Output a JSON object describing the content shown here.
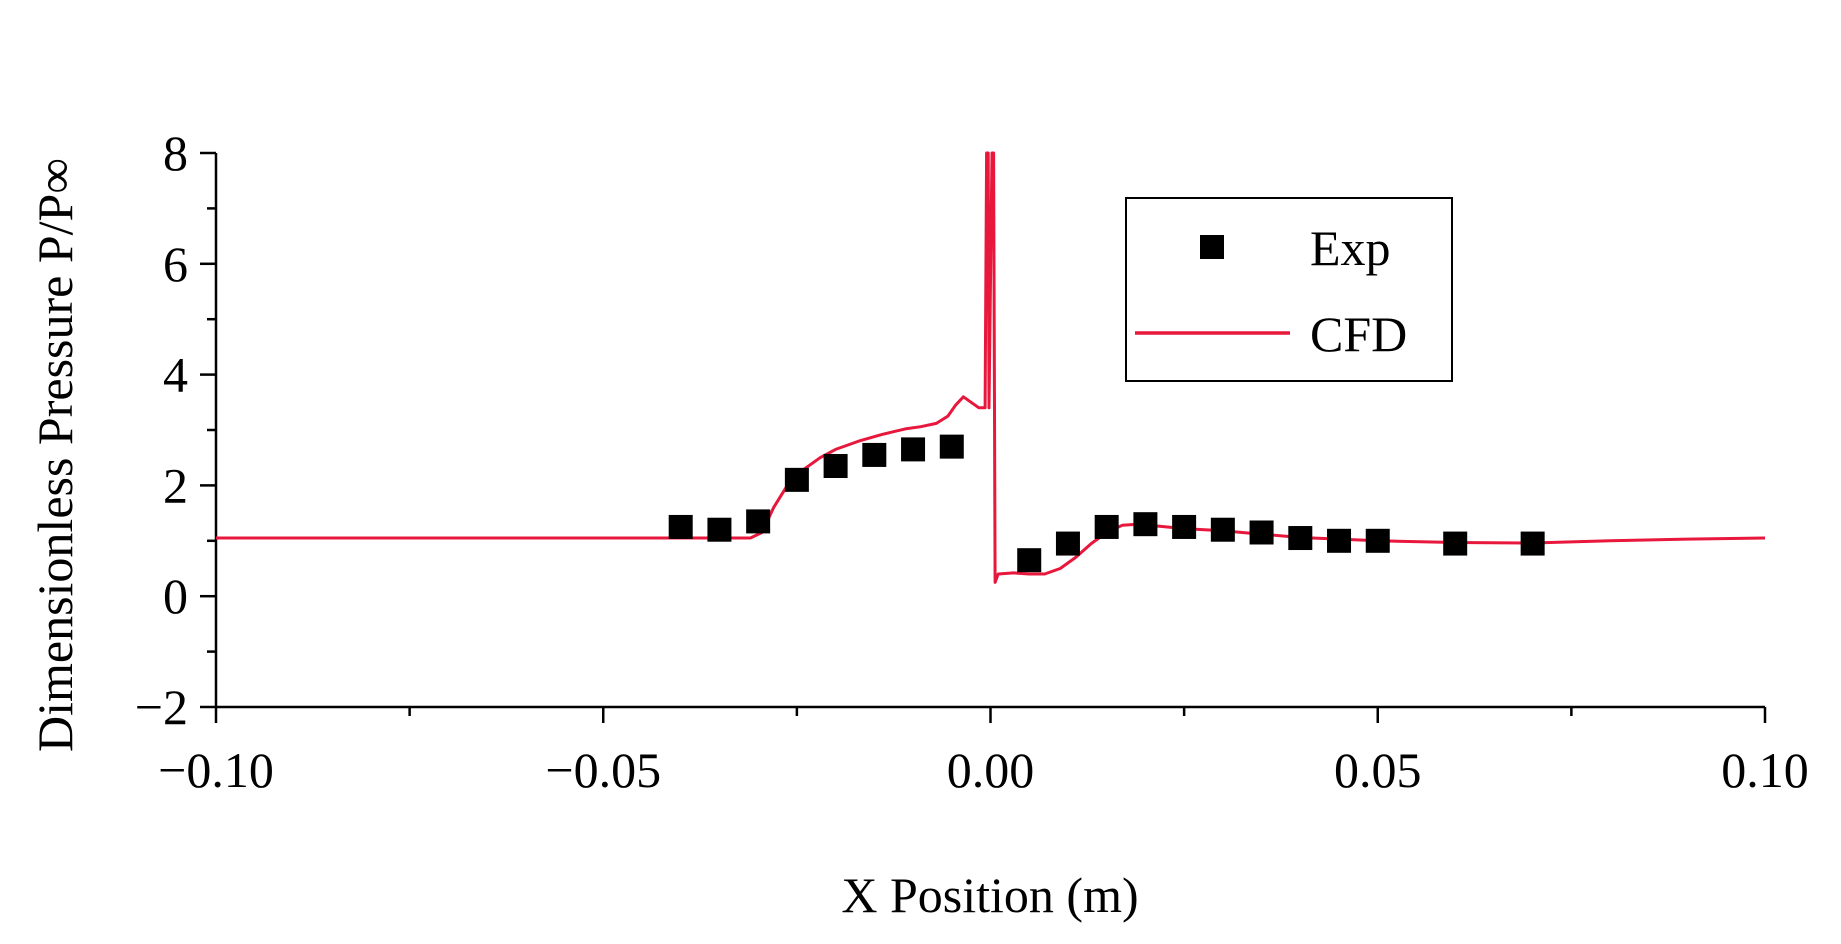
{
  "chart_data": {
    "type": "scatter+line",
    "title": "",
    "xlabel": "X Position (m)",
    "ylabel": "Dimensionless Pressure P/P∞",
    "xlim": [
      -0.1,
      0.1
    ],
    "ylim": [
      -2,
      8
    ],
    "x_ticks": [
      -0.1,
      -0.05,
      0.0,
      0.05,
      0.1
    ],
    "x_tick_labels": [
      "−0.10",
      "−0.05",
      "0.00",
      "0.05",
      "0.10"
    ],
    "y_ticks": [
      -2,
      0,
      2,
      4,
      6,
      8
    ],
    "y_tick_labels": [
      "−2",
      "0",
      "2",
      "4",
      "6",
      "8"
    ],
    "grid": false,
    "legend": {
      "position": "top-right",
      "entries": [
        "Exp",
        "CFD"
      ]
    },
    "series": [
      {
        "name": "Exp",
        "kind": "scatter",
        "marker": "square",
        "color": "#000000",
        "x": [
          -0.04,
          -0.035,
          -0.03,
          -0.025,
          -0.02,
          -0.015,
          -0.01,
          -0.005,
          0.005,
          0.01,
          0.015,
          0.02,
          0.025,
          0.03,
          0.035,
          0.04,
          0.045,
          0.05,
          0.06,
          0.07
        ],
        "y": [
          1.25,
          1.2,
          1.35,
          2.1,
          2.35,
          2.55,
          2.65,
          2.7,
          0.65,
          0.95,
          1.25,
          1.3,
          1.25,
          1.2,
          1.15,
          1.05,
          1.0,
          1.0,
          0.95,
          0.95
        ]
      },
      {
        "name": "CFD",
        "kind": "line",
        "color": "#e8173c",
        "x": [
          -0.1,
          -0.031,
          -0.0295,
          -0.028,
          -0.026,
          -0.024,
          -0.022,
          -0.02,
          -0.017,
          -0.014,
          -0.011,
          -0.009,
          -0.007,
          -0.0055,
          -0.0045,
          -0.0035,
          -0.0025,
          -0.0015,
          -0.0007,
          -0.0005,
          -0.0003,
          -0.0002,
          0.0002,
          0.0004,
          0.0006,
          0.001,
          0.003,
          0.005,
          0.007,
          0.009,
          0.011,
          0.013,
          0.015,
          0.017,
          0.019,
          0.022,
          0.025,
          0.03,
          0.035,
          0.04,
          0.05,
          0.06,
          0.07,
          0.08,
          0.09,
          0.1
        ],
        "y": [
          1.05,
          1.05,
          1.15,
          1.6,
          2.05,
          2.3,
          2.5,
          2.65,
          2.8,
          2.92,
          3.02,
          3.06,
          3.12,
          3.25,
          3.45,
          3.6,
          3.5,
          3.4,
          3.4,
          8.0,
          8.0,
          3.4,
          8.0,
          8.0,
          0.25,
          0.4,
          0.42,
          0.4,
          0.4,
          0.5,
          0.7,
          0.95,
          1.15,
          1.28,
          1.3,
          1.26,
          1.22,
          1.18,
          1.12,
          1.06,
          1.0,
          0.97,
          0.96,
          1.0,
          1.03,
          1.05
        ]
      }
    ]
  }
}
